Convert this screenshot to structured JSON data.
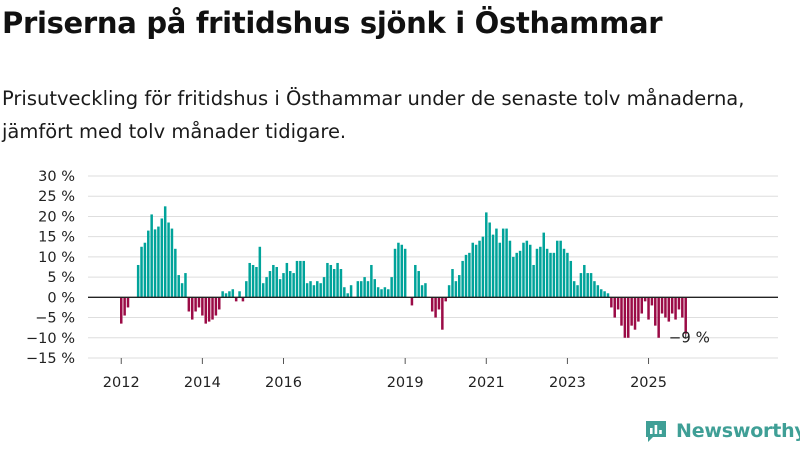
{
  "header": {
    "title": "Priserna på fritidshus sjönk i Östhammar",
    "subtitle": "Prisutveckling för fritidshus i Östhammar under de senaste tolv månaderna, jämfört med tolv månader tidigare."
  },
  "brand": {
    "name": "Newsworthy",
    "color": "#3f9f96"
  },
  "chart_data": {
    "type": "bar",
    "title": "Priserna på fritidshus sjönk i Östhammar",
    "subtitle": "Prisutveckling för fritidshus i Östhammar under de senaste tolv månaderna, jämfört med tolv månader tidigare.",
    "xlabel": "",
    "ylabel": "",
    "ylim": [
      -15,
      30
    ],
    "yticks": [
      30,
      25,
      20,
      15,
      10,
      5,
      0,
      -5,
      -10,
      -15
    ],
    "ytick_labels": [
      "30 %",
      "25 %",
      "20 %",
      "15 %",
      "10 %",
      "5 %",
      "0 %",
      "−5 %",
      "−10 %",
      "−15 %"
    ],
    "xticks": [
      2012,
      2014,
      2016,
      2019,
      2021,
      2023,
      2025
    ],
    "xtick_labels": [
      "2012",
      "2014",
      "2016",
      "2019",
      "2021",
      "2023",
      "2025"
    ],
    "grid": true,
    "positive_color": "#00a39a",
    "negative_color": "#9b0b46",
    "start_year": 2012,
    "annotation": {
      "text": "−9 %",
      "value": -9
    },
    "series": [
      {
        "name": "Prisutveckling",
        "values": [
          -6.5,
          -4.5,
          -2.5,
          0,
          0,
          8,
          12.5,
          13.5,
          16.5,
          20.5,
          16.8,
          17.5,
          19.5,
          22.5,
          18.5,
          17,
          12,
          5.5,
          3.5,
          6,
          -3.5,
          -5.5,
          -3.5,
          -2.5,
          -4.5,
          -6.5,
          -6,
          -5.5,
          -4.5,
          -3,
          1.5,
          1,
          1.5,
          2,
          -1,
          1.5,
          -1,
          4,
          8.5,
          8,
          7.5,
          12.5,
          3.5,
          5,
          6.5,
          8,
          7.5,
          4.5,
          6,
          8.5,
          6.5,
          6,
          9,
          9,
          9,
          3.5,
          4,
          3,
          4,
          3.5,
          5,
          8.5,
          8,
          7,
          8.5,
          7,
          2.5,
          1,
          3,
          0,
          4,
          4,
          5,
          4,
          8,
          4.5,
          2.5,
          2,
          2.5,
          2,
          5,
          12,
          13.5,
          13,
          12,
          0,
          -2,
          8,
          6.5,
          3,
          3.5,
          0,
          -3.5,
          -5,
          -3,
          -8,
          -1,
          3,
          7,
          4,
          5.5,
          9,
          10.5,
          11,
          13.5,
          13,
          14,
          15,
          21,
          18.5,
          15.5,
          17,
          13.5,
          17,
          17,
          14,
          10,
          11,
          11.5,
          13.5,
          14,
          13,
          8,
          12,
          12.5,
          16,
          12,
          11,
          11,
          14,
          14,
          12,
          11,
          9,
          4,
          3,
          6,
          8,
          6,
          6,
          4,
          3,
          2,
          1.5,
          1,
          -2.5,
          -5,
          -3,
          -7,
          -10,
          -10,
          -7,
          -8,
          -6,
          -4,
          -1,
          -5.5,
          -2,
          -7,
          -10,
          -4,
          -5,
          -6,
          -4,
          -5.5,
          -3,
          -5,
          -9
        ]
      }
    ]
  }
}
